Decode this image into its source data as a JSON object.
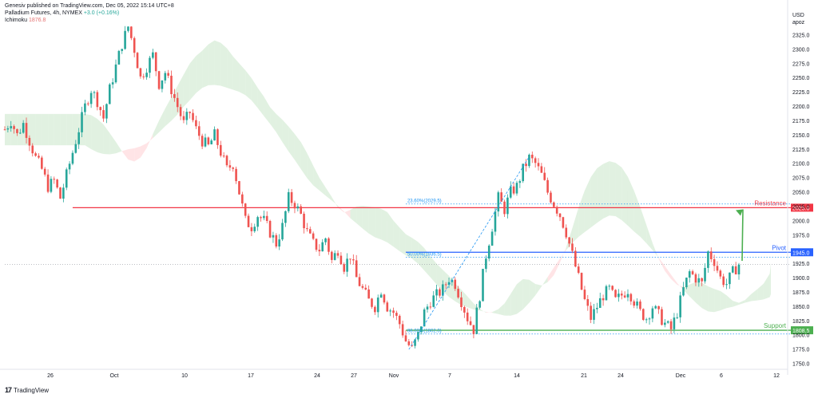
{
  "header": {
    "published_by": "Genesiv published on TradingView.com, Dec 05, 2022 15:14 UTC+8",
    "symbol": "Palladium Futures, 4h, NYMEX",
    "change": "+3.0 (+0.16%)",
    "indicator_name": "Ichimoku",
    "indicator_value": "1876.8"
  },
  "branding": {
    "logo_text": "17",
    "name": "TradingView"
  },
  "axis_header": {
    "currency": "USD",
    "unit": "apoz"
  },
  "colors": {
    "up": "#26a69a",
    "down": "#ef5350",
    "cloud_bull": "#c8e6c9",
    "cloud_bear": "#ffcdd2",
    "resistance": "#f23645",
    "pivot": "#2962ff",
    "support": "#4caf50",
    "fib": "#2196f3",
    "arrow": "#4caf50"
  },
  "chart_data": {
    "type": "candlestick",
    "y_ticks": [
      "2325.0",
      "2300.0",
      "2275.0",
      "2250.0",
      "2225.0",
      "2200.0",
      "2175.0",
      "2150.0",
      "2125.0",
      "2100.0",
      "2075.0",
      "2050.0",
      "2025.0",
      "2000.0",
      "1975.0",
      "1925.0",
      "1900.0",
      "1875.0",
      "1850.0",
      "1825.0",
      "1800.0",
      "1775.0",
      "1750.0"
    ],
    "y_range": [
      1740,
      2340
    ],
    "x_ticks": [
      "26",
      "Oct",
      "10",
      "17",
      "24",
      "27",
      "Nov",
      "7",
      "14",
      "21",
      "24",
      "Dec",
      "6",
      "12"
    ],
    "levels": [
      {
        "name": "Resistance",
        "label": "Resistance",
        "value": 2023.0,
        "value_label": "2023.0"
      },
      {
        "name": "Pivot",
        "label": "Pivot",
        "value": 1945.0,
        "value_label": "1945.0"
      },
      {
        "name": "Support",
        "label": "Support",
        "value": 1808.5,
        "value_label": "1808.5"
      }
    ],
    "fib_levels": [
      {
        "label": "23.60%(2029.5)",
        "value": 2029.5
      },
      {
        "label": "50.00%(1936.5)",
        "value": 1936.5
      },
      {
        "label": "88.00%(1802.0)",
        "value": 1802.0
      }
    ],
    "current_price": 1924.0,
    "price_path": [
      [
        0,
        2160
      ],
      [
        2,
        2175
      ],
      [
        4,
        2150
      ],
      [
        6,
        2170
      ],
      [
        8,
        2140
      ],
      [
        10,
        2110
      ],
      [
        12,
        2090
      ],
      [
        14,
        2060
      ],
      [
        16,
        2070
      ],
      [
        18,
        2040
      ],
      [
        20,
        2080
      ],
      [
        22,
        2120
      ],
      [
        24,
        2160
      ],
      [
        26,
        2200
      ],
      [
        28,
        2230
      ],
      [
        30,
        2210
      ],
      [
        32,
        2180
      ],
      [
        34,
        2230
      ],
      [
        36,
        2270
      ],
      [
        38,
        2310
      ],
      [
        40,
        2340
      ],
      [
        42,
        2300
      ],
      [
        44,
        2250
      ],
      [
        46,
        2270
      ],
      [
        48,
        2290
      ],
      [
        50,
        2240
      ],
      [
        52,
        2260
      ],
      [
        54,
        2230
      ],
      [
        56,
        2200
      ],
      [
        58,
        2170
      ],
      [
        60,
        2190
      ],
      [
        62,
        2160
      ],
      [
        64,
        2140
      ],
      [
        66,
        2130
      ],
      [
        68,
        2150
      ],
      [
        70,
        2120
      ],
      [
        72,
        2090
      ],
      [
        74,
        2100
      ],
      [
        76,
        2050
      ],
      [
        78,
        2000
      ],
      [
        80,
        1990
      ],
      [
        82,
        2010
      ],
      [
        84,
        2000
      ],
      [
        86,
        1980
      ],
      [
        88,
        1960
      ],
      [
        90,
        1990
      ],
      [
        92,
        2040
      ],
      [
        94,
        2030
      ],
      [
        96,
        2010
      ],
      [
        98,
        1980
      ],
      [
        100,
        1960
      ],
      [
        102,
        1950
      ],
      [
        104,
        1970
      ],
      [
        106,
        1930
      ],
      [
        108,
        1950
      ],
      [
        110,
        1920
      ],
      [
        112,
        1940
      ],
      [
        114,
        1900
      ],
      [
        116,
        1880
      ],
      [
        118,
        1860
      ],
      [
        120,
        1850
      ],
      [
        122,
        1880
      ],
      [
        124,
        1850
      ],
      [
        126,
        1840
      ],
      [
        128,
        1820
      ],
      [
        130,
        1790
      ],
      [
        132,
        1775
      ],
      [
        134,
        1800
      ],
      [
        136,
        1840
      ],
      [
        138,
        1860
      ],
      [
        140,
        1870
      ],
      [
        142,
        1880
      ],
      [
        144,
        1900
      ],
      [
        146,
        1890
      ],
      [
        148,
        1860
      ],
      [
        150,
        1830
      ],
      [
        152,
        1810
      ],
      [
        154,
        1870
      ],
      [
        156,
        1940
      ],
      [
        158,
        1990
      ],
      [
        160,
        2040
      ],
      [
        162,
        2020
      ],
      [
        164,
        2050
      ],
      [
        166,
        2060
      ],
      [
        168,
        2090
      ],
      [
        170,
        2110
      ],
      [
        172,
        2100
      ],
      [
        174,
        2080
      ],
      [
        176,
        2050
      ],
      [
        178,
        2030
      ],
      [
        180,
        2010
      ],
      [
        182,
        1980
      ],
      [
        184,
        1940
      ],
      [
        186,
        1900
      ],
      [
        188,
        1860
      ],
      [
        190,
        1830
      ],
      [
        192,
        1850
      ],
      [
        194,
        1870
      ],
      [
        196,
        1880
      ],
      [
        198,
        1860
      ],
      [
        200,
        1870
      ],
      [
        202,
        1880
      ],
      [
        204,
        1860
      ],
      [
        206,
        1840
      ],
      [
        208,
        1830
      ],
      [
        210,
        1850
      ],
      [
        212,
        1835
      ],
      [
        214,
        1820
      ],
      [
        216,
        1810
      ],
      [
        218,
        1840
      ],
      [
        220,
        1880
      ],
      [
        222,
        1910
      ],
      [
        224,
        1900
      ],
      [
        226,
        1890
      ],
      [
        228,
        1945
      ],
      [
        230,
        1930
      ],
      [
        232,
        1900
      ],
      [
        234,
        1890
      ],
      [
        236,
        1910
      ],
      [
        238,
        1924
      ]
    ]
  }
}
